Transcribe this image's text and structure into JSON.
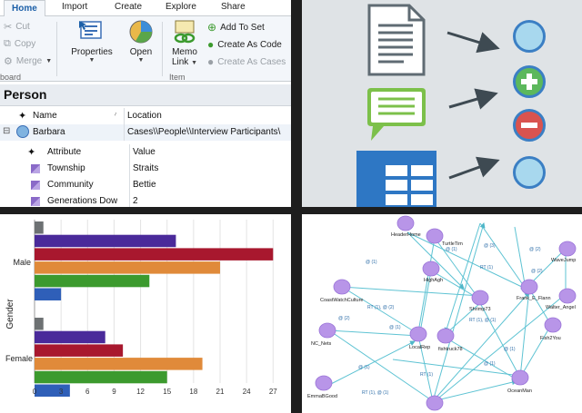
{
  "ribbon": {
    "tabs": [
      "Home",
      "Import",
      "Create",
      "Explore",
      "Share"
    ],
    "clipboard": {
      "cut": "Cut",
      "copy": "Copy",
      "merge": "Merge",
      "group": "board"
    },
    "properties": "Properties",
    "open": "Open",
    "memo_link": [
      "Memo",
      "Link"
    ],
    "item_group": "Item",
    "add_to_set": "Add To Set",
    "create_as_code": "Create As Code",
    "create_as_cases": "Create As Cases"
  },
  "case_view": {
    "title": "Person",
    "columns": {
      "name": "Name",
      "location": "Location"
    },
    "case": {
      "name": "Barbara",
      "location": "Cases\\\\People\\\\Interview Participants\\"
    },
    "attr_columns": {
      "attribute": "Attribute",
      "value": "Value"
    },
    "attributes": [
      {
        "name": "Township",
        "value": "Straits"
      },
      {
        "name": "Community",
        "value": "Bettie"
      },
      {
        "name": "Generations Dow",
        "value": "2"
      }
    ]
  },
  "chart_data": {
    "type": "bar",
    "orientation": "horizontal",
    "ylabel": "Gender",
    "categories": [
      "Male",
      "Female"
    ],
    "series_colors": [
      "#6d7173",
      "#4a2a9a",
      "#a8182e",
      "#e08a3a",
      "#3c9a2e",
      "#2f5fb8"
    ],
    "series": [
      {
        "values": [
          1,
          1
        ]
      },
      {
        "values": [
          16,
          8
        ]
      },
      {
        "values": [
          27,
          10
        ]
      },
      {
        "values": [
          21,
          19
        ]
      },
      {
        "values": [
          13,
          15
        ]
      },
      {
        "values": [
          3,
          4
        ]
      }
    ],
    "xticks": [
      "0",
      "3",
      "6",
      "9",
      "12",
      "15",
      "18",
      "21",
      "24",
      "27"
    ],
    "xlim": [
      0,
      28
    ]
  },
  "network": {
    "node_labels": [
      "HeaderHome",
      "TurtleTim",
      "WaveJump",
      "CoastWatchCulture",
      "HighAgh",
      "Shrimp73",
      "Frank_E_Flann",
      "Walter_Angel",
      "NC_Nets",
      "LocalRep",
      "fishtruck78",
      "Fish2You",
      "EmmaBGood",
      "OceanMan"
    ],
    "edge_labels": [
      "RT (1)",
      "RT (1), @ (2)",
      "RT (1), @ (1)",
      "@ (1)",
      "@ (2)",
      "@ (3)",
      "@ (1)"
    ]
  }
}
